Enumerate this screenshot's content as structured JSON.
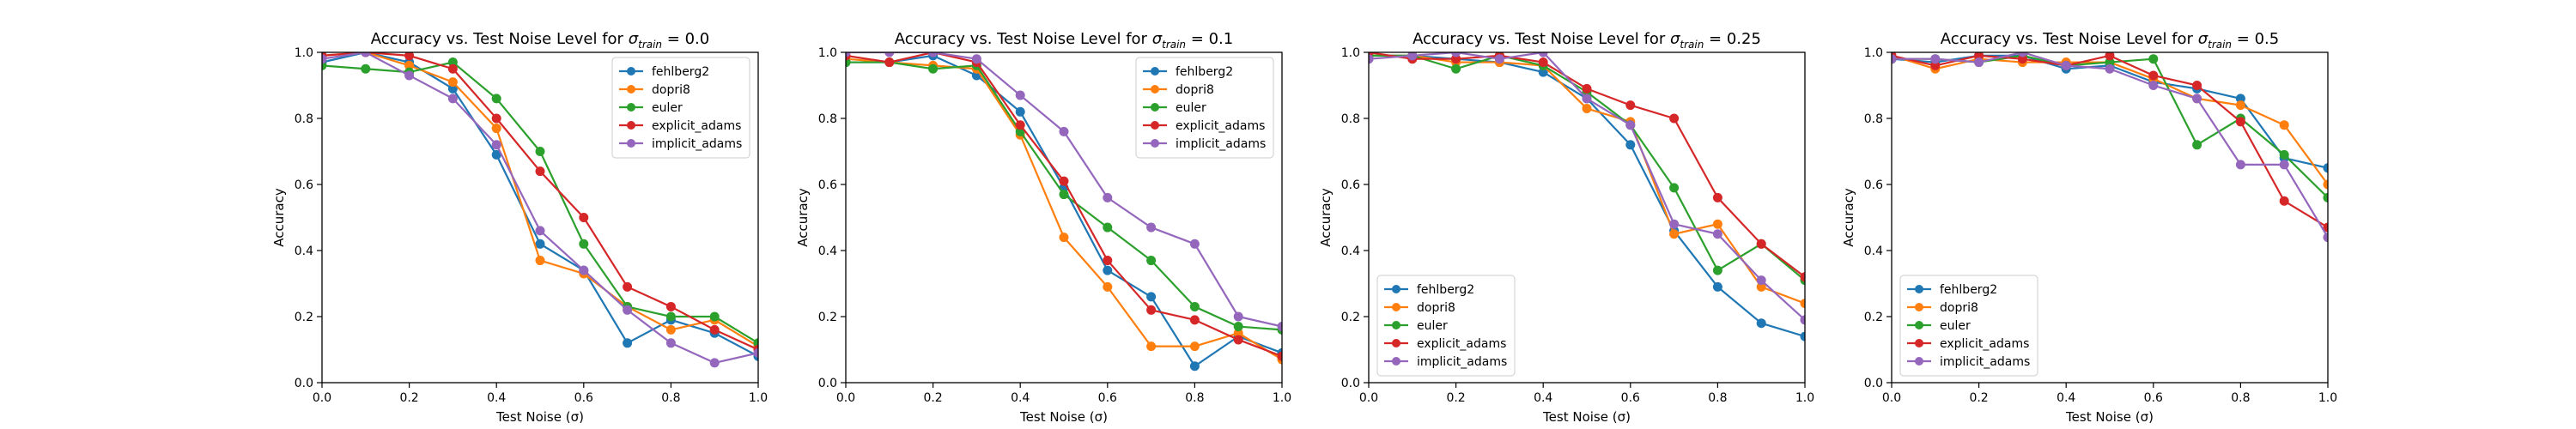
{
  "chart_data": [
    {
      "type": "line",
      "title_main": "Accuracy vs. Test Noise Level for ",
      "title_sym": "σ",
      "title_sub": "train",
      "title_eq": " = 0.0",
      "xlabel": "Test Noise (σ)",
      "ylabel": "Accuracy",
      "xlim": [
        0.0,
        1.0
      ],
      "ylim": [
        0.0,
        1.0
      ],
      "xticks": [
        "0.0",
        "0.2",
        "0.4",
        "0.6",
        "0.8",
        "1.0"
      ],
      "yticks": [
        "0.0",
        "0.2",
        "0.4",
        "0.6",
        "0.8",
        "1.0"
      ],
      "grid": false,
      "legend_position": "upper right",
      "x": [
        0.0,
        0.1,
        0.2,
        0.3,
        0.4,
        0.5,
        0.6,
        0.7,
        0.8,
        0.9,
        1.0
      ],
      "series": [
        {
          "name": "fehlberg2",
          "color": "#1f77b4",
          "values": [
            0.97,
            1.0,
            0.97,
            0.89,
            0.69,
            0.42,
            0.34,
            0.12,
            0.19,
            0.15,
            0.08
          ]
        },
        {
          "name": "dopri8",
          "color": "#ff7f0e",
          "values": [
            0.99,
            1.0,
            0.96,
            0.91,
            0.77,
            0.37,
            0.33,
            0.23,
            0.16,
            0.19,
            0.11
          ]
        },
        {
          "name": "euler",
          "color": "#2ca02c",
          "values": [
            0.96,
            0.95,
            0.94,
            0.97,
            0.86,
            0.7,
            0.42,
            0.23,
            0.2,
            0.2,
            0.12
          ]
        },
        {
          "name": "explicit_adams",
          "color": "#d62728",
          "values": [
            0.99,
            1.0,
            0.99,
            0.95,
            0.8,
            0.64,
            0.5,
            0.29,
            0.23,
            0.16,
            0.1
          ]
        },
        {
          "name": "implicit_adams",
          "color": "#9467bd",
          "values": [
            0.98,
            1.0,
            0.93,
            0.86,
            0.72,
            0.46,
            0.34,
            0.22,
            0.12,
            0.06,
            0.09
          ]
        }
      ]
    },
    {
      "type": "line",
      "title_main": "Accuracy vs. Test Noise Level for ",
      "title_sym": "σ",
      "title_sub": "train",
      "title_eq": " = 0.1",
      "xlabel": "Test Noise (σ)",
      "ylabel": "Accuracy",
      "xlim": [
        0.0,
        1.0
      ],
      "ylim": [
        0.0,
        1.0
      ],
      "xticks": [
        "0.0",
        "0.2",
        "0.4",
        "0.6",
        "0.8",
        "1.0"
      ],
      "yticks": [
        "0.0",
        "0.2",
        "0.4",
        "0.6",
        "0.8",
        "1.0"
      ],
      "grid": false,
      "legend_position": "upper right",
      "x": [
        0.0,
        0.1,
        0.2,
        0.3,
        0.4,
        0.5,
        0.6,
        0.7,
        0.8,
        0.9,
        1.0
      ],
      "series": [
        {
          "name": "fehlberg2",
          "color": "#1f77b4",
          "values": [
            0.97,
            0.97,
            0.99,
            0.93,
            0.82,
            0.59,
            0.34,
            0.26,
            0.05,
            0.14,
            0.09
          ]
        },
        {
          "name": "dopri8",
          "color": "#ff7f0e",
          "values": [
            0.98,
            0.97,
            0.96,
            0.95,
            0.75,
            0.44,
            0.29,
            0.11,
            0.11,
            0.15,
            0.07
          ]
        },
        {
          "name": "euler",
          "color": "#2ca02c",
          "values": [
            0.97,
            0.97,
            0.95,
            0.96,
            0.76,
            0.57,
            0.47,
            0.37,
            0.23,
            0.17,
            0.16
          ]
        },
        {
          "name": "explicit_adams",
          "color": "#d62728",
          "values": [
            0.99,
            0.97,
            1.0,
            0.97,
            0.78,
            0.61,
            0.37,
            0.22,
            0.19,
            0.13,
            0.08
          ]
        },
        {
          "name": "implicit_adams",
          "color": "#9467bd",
          "values": [
            1.0,
            1.0,
            1.0,
            0.98,
            0.87,
            0.76,
            0.56,
            0.47,
            0.42,
            0.2,
            0.17
          ]
        }
      ]
    },
    {
      "type": "line",
      "title_main": "Accuracy vs. Test Noise Level for ",
      "title_sym": "σ",
      "title_sub": "train",
      "title_eq": " = 0.25",
      "xlabel": "Test Noise (σ)",
      "ylabel": "Accuracy",
      "xlim": [
        0.0,
        1.0
      ],
      "ylim": [
        0.0,
        1.0
      ],
      "xticks": [
        "0.0",
        "0.2",
        "0.4",
        "0.6",
        "0.8",
        "1.0"
      ],
      "yticks": [
        "0.0",
        "0.2",
        "0.4",
        "0.6",
        "0.8",
        "1.0"
      ],
      "grid": false,
      "legend_position": "lower left",
      "x": [
        0.0,
        0.1,
        0.2,
        0.3,
        0.4,
        0.5,
        0.6,
        0.7,
        0.8,
        0.9,
        1.0
      ],
      "series": [
        {
          "name": "fehlberg2",
          "color": "#1f77b4",
          "values": [
            0.99,
            0.99,
            0.98,
            0.97,
            0.94,
            0.86,
            0.72,
            0.46,
            0.29,
            0.18,
            0.14
          ]
        },
        {
          "name": "dopri8",
          "color": "#ff7f0e",
          "values": [
            0.99,
            0.99,
            0.97,
            0.97,
            0.96,
            0.83,
            0.79,
            0.45,
            0.48,
            0.29,
            0.24
          ]
        },
        {
          "name": "euler",
          "color": "#2ca02c",
          "values": [
            0.99,
            0.99,
            0.95,
            0.99,
            0.96,
            0.88,
            0.78,
            0.59,
            0.34,
            0.42,
            0.31
          ]
        },
        {
          "name": "explicit_adams",
          "color": "#d62728",
          "values": [
            1.0,
            0.98,
            0.98,
            0.99,
            0.97,
            0.89,
            0.84,
            0.8,
            0.56,
            0.42,
            0.32
          ]
        },
        {
          "name": "implicit_adams",
          "color": "#9467bd",
          "values": [
            0.98,
            0.99,
            1.0,
            0.98,
            1.0,
            0.86,
            0.78,
            0.48,
            0.45,
            0.31,
            0.19
          ]
        }
      ]
    },
    {
      "type": "line",
      "title_main": "Accuracy vs. Test Noise Level for ",
      "title_sym": "σ",
      "title_sub": "train",
      "title_eq": " = 0.5",
      "xlabel": "Test Noise (σ)",
      "ylabel": "Accuracy",
      "xlim": [
        0.0,
        1.0
      ],
      "ylim": [
        0.0,
        1.0
      ],
      "xticks": [
        "0.0",
        "0.2",
        "0.4",
        "0.6",
        "0.8",
        "1.0"
      ],
      "yticks": [
        "0.0",
        "0.2",
        "0.4",
        "0.6",
        "0.8",
        "1.0"
      ],
      "grid": false,
      "legend_position": "lower left",
      "x": [
        0.0,
        0.1,
        0.2,
        0.3,
        0.4,
        0.5,
        0.6,
        0.7,
        0.8,
        0.9,
        1.0
      ],
      "series": [
        {
          "name": "fehlberg2",
          "color": "#1f77b4",
          "values": [
            0.98,
            0.97,
            0.99,
            0.99,
            0.95,
            0.96,
            0.91,
            0.89,
            0.86,
            0.68,
            0.65
          ]
        },
        {
          "name": "dopri8",
          "color": "#ff7f0e",
          "values": [
            0.99,
            0.95,
            0.98,
            0.97,
            0.97,
            0.97,
            0.92,
            0.86,
            0.84,
            0.78,
            0.6
          ]
        },
        {
          "name": "euler",
          "color": "#2ca02c",
          "values": [
            0.98,
            0.98,
            0.97,
            0.99,
            0.96,
            0.97,
            0.98,
            0.72,
            0.8,
            0.69,
            0.56
          ]
        },
        {
          "name": "explicit_adams",
          "color": "#d62728",
          "values": [
            0.99,
            0.96,
            0.99,
            0.98,
            0.96,
            0.99,
            0.93,
            0.9,
            0.79,
            0.55,
            0.47
          ]
        },
        {
          "name": "implicit_adams",
          "color": "#9467bd",
          "values": [
            0.98,
            0.98,
            0.97,
            1.0,
            0.96,
            0.95,
            0.9,
            0.86,
            0.66,
            0.66,
            0.44
          ]
        }
      ]
    }
  ]
}
